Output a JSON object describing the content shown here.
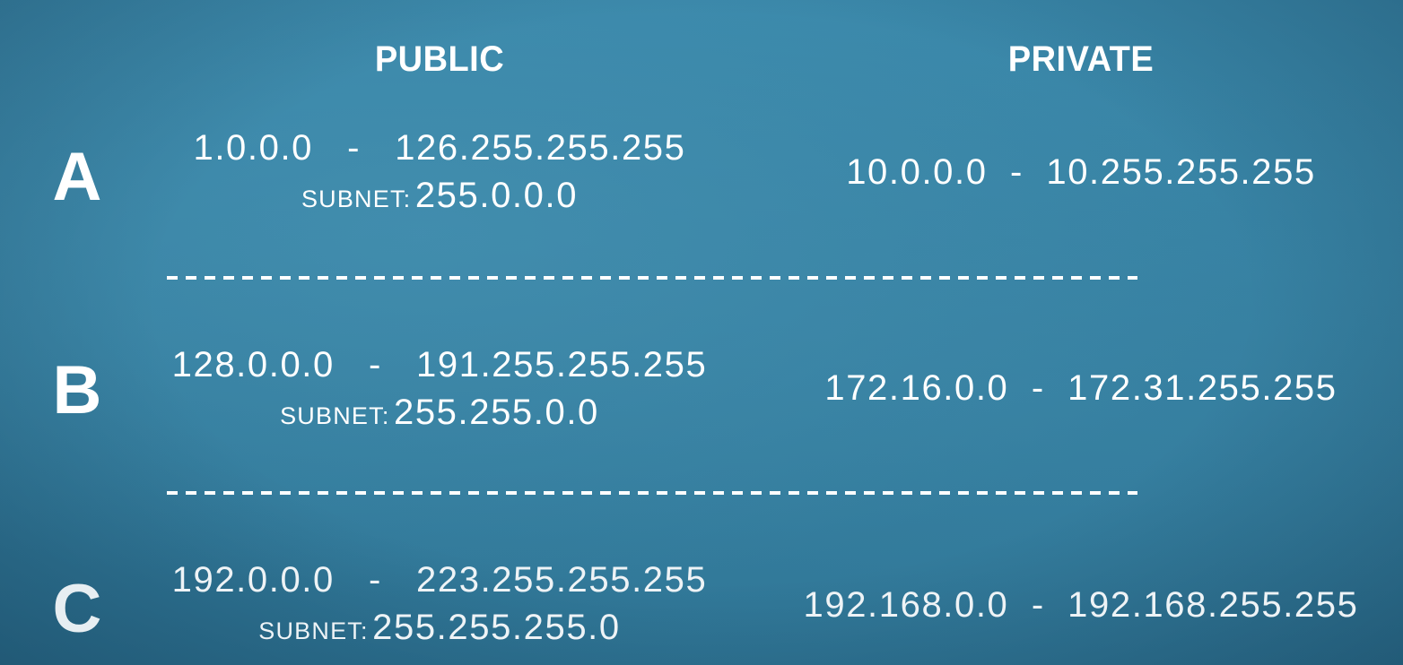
{
  "headers": {
    "public": "PUBLIC",
    "private": "PRIVATE"
  },
  "classes": [
    {
      "letter": "A",
      "public_range": "1.0.0.0   -   126.255.255.255",
      "subnet_label": "SUBNET:",
      "subnet_value": "255.0.0.0",
      "private_range": "10.0.0.0  -  10.255.255.255"
    },
    {
      "letter": "B",
      "public_range": "128.0.0.0   -   191.255.255.255",
      "subnet_label": "SUBNET:",
      "subnet_value": "255.255.0.0",
      "private_range": "172.16.0.0  -  172.31.255.255"
    },
    {
      "letter": "C",
      "public_range": "192.0.0.0   -   223.255.255.255",
      "subnet_label": "SUBNET:",
      "subnet_value": "255.255.255.0",
      "private_range": "192.168.0.0  -  192.168.255.255"
    }
  ],
  "colors": {
    "background": "#357f9f",
    "text": "#ffffff"
  }
}
